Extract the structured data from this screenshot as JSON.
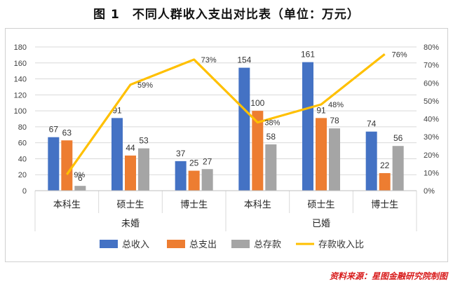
{
  "title": "图 1　不同人群收入支出对比表（单位：万元）",
  "source": "资料来源：星图金融研究院制图",
  "colors": {
    "income": "#4472C4",
    "expense": "#ED7D31",
    "savings": "#A5A5A5",
    "ratio_line": "#FFC000",
    "gridline": "#d9d9d9",
    "axis_text": "#404040"
  },
  "chart_data": {
    "type": "bar",
    "categories": [
      "本科生",
      "硕士生",
      "博士生",
      "本科生",
      "硕士生",
      "博士生"
    ],
    "groups": [
      {
        "label": "未婚",
        "categories": [
          "本科生",
          "硕士生",
          "博士生"
        ]
      },
      {
        "label": "已婚",
        "categories": [
          "本科生",
          "硕士生",
          "博士生"
        ]
      }
    ],
    "series": [
      {
        "name": "总收入",
        "type": "bar",
        "axis": "left",
        "values": [
          67,
          91,
          37,
          154,
          161,
          74
        ]
      },
      {
        "name": "总支出",
        "type": "bar",
        "axis": "left",
        "values": [
          63,
          44,
          25,
          100,
          91,
          22
        ]
      },
      {
        "name": "总存款",
        "type": "bar",
        "axis": "left",
        "values": [
          6,
          53,
          27,
          58,
          78,
          56
        ]
      },
      {
        "name": "存款收入比",
        "type": "line",
        "axis": "right",
        "values": [
          9,
          59,
          73,
          38,
          48,
          76
        ],
        "labels": [
          "9%",
          "59%",
          "73%",
          "38%",
          "48%",
          "76%"
        ]
      }
    ],
    "y_left": {
      "min": 0,
      "max": 180,
      "step": 20,
      "ticks": [
        "0",
        "20",
        "40",
        "60",
        "80",
        "100",
        "120",
        "140",
        "160",
        "180"
      ]
    },
    "y_right": {
      "min": 0,
      "max": 80,
      "step": 10,
      "ticks": [
        "0%",
        "10%",
        "20%",
        "30%",
        "40%",
        "50%",
        "60%",
        "70%",
        "80%"
      ]
    },
    "grid": true,
    "legend_position": "bottom"
  }
}
